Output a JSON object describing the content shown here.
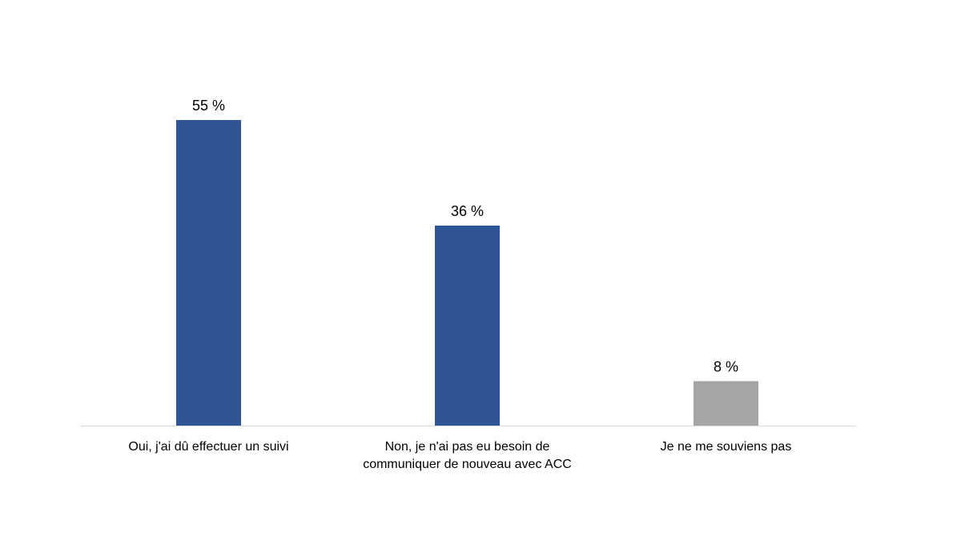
{
  "chart_data": {
    "type": "bar",
    "title": "",
    "xlabel": "",
    "ylabel": "",
    "categories": [
      "Oui, j'ai dû effectuer un suivi",
      "Non, je n'ai pas eu besoin de communiquer de nouveau avec ACC",
      "Je ne me souviens pas"
    ],
    "category_lines": [
      [
        "Oui, j'ai dû effectuer un suivi"
      ],
      [
        "Non, je n'ai pas eu besoin de",
        "communiquer de nouveau avec ACC"
      ],
      [
        "Je ne me souviens pas"
      ]
    ],
    "values": [
      55,
      36,
      8
    ],
    "data_labels": [
      "55 %",
      "36 %",
      "8 %"
    ],
    "colors": [
      "#2F5597",
      "#2F5597",
      "#A5A5A5"
    ],
    "grid": false,
    "legend": "none"
  }
}
